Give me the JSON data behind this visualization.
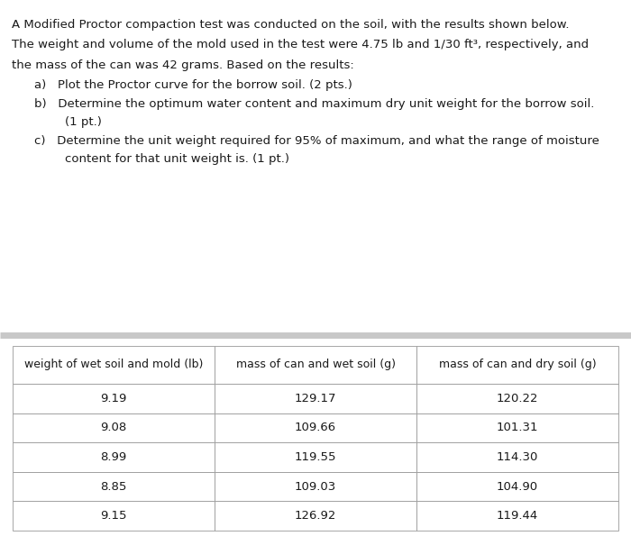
{
  "line1": "A Modified Proctor compaction test was conducted on the soil, with the results shown below.",
  "line2": "The weight and volume of the mold used in the test were 4.75 lb and 1/30 ft³, respectively, and",
  "line3": "the mass of the can was 42 grams. Based on the results:",
  "item_a": "a)   Plot the Proctor curve for the borrow soil. (2 pts.)",
  "item_b1": "b)   Determine the optimum water content and maximum dry unit weight for the borrow soil.",
  "item_b2": "        (1 pt.)",
  "item_c1": "c)   Determine the unit weight required for 95% of maximum, and what the range of moisture",
  "item_c2": "        content for that unit weight is. (1 pt.)",
  "table_headers": [
    "weight of wet soil and mold (lb)",
    "mass of can and wet soil (g)",
    "mass of can and dry soil (g)"
  ],
  "table_data": [
    [
      "9.19",
      "129.17",
      "120.22"
    ],
    [
      "9.08",
      "109.66",
      "101.31"
    ],
    [
      "8.99",
      "119.55",
      "114.30"
    ],
    [
      "8.85",
      "109.03",
      "104.90"
    ],
    [
      "9.15",
      "126.92",
      "119.44"
    ]
  ],
  "bg_color": "#ffffff",
  "text_color": "#1a1a1a",
  "divider_color": "#c8c8c8",
  "font_size_body": 9.5,
  "font_size_table_header": 9.0,
  "font_size_table_data": 9.5
}
